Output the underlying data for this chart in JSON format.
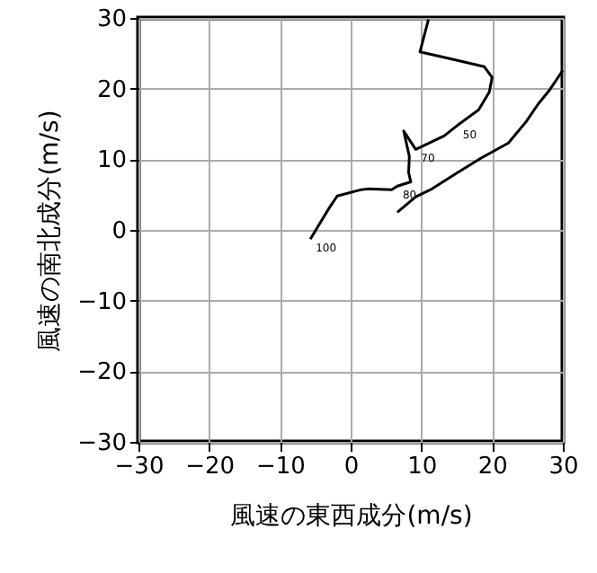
{
  "chart_data": {
    "type": "line",
    "xlabel": "風速の東西成分(m/s)",
    "ylabel": "風速の南北成分(m/s)",
    "xlim": [
      -30,
      30
    ],
    "ylim": [
      -30,
      30
    ],
    "xticks": [
      -30,
      -20,
      -10,
      0,
      10,
      20,
      30
    ],
    "yticks": [
      -30,
      -20,
      -10,
      0,
      10,
      20,
      30
    ],
    "grid": true,
    "marker": "none",
    "line_style": "solid",
    "series": [
      {
        "color": "#000000",
        "x": [
          6.6,
          9.2,
          11.3,
          15.1,
          18.5,
          22.3,
          24.8,
          26.5,
          28.2,
          30
        ],
        "values": [
          2.5,
          4.7,
          5.7,
          8.1,
          10.2,
          12.3,
          15.3,
          17.8,
          19.9,
          22.6
        ]
      },
      {
        "color": "#000000",
        "x": [
          11.0,
          9.8,
          15.1,
          18.9,
          20,
          19.6,
          18.1,
          15.1,
          13.2,
          9.2,
          7.5,
          8.3,
          8.2,
          8.5,
          6.6,
          5.8,
          2.4,
          1.5,
          -1.9,
          -3.1,
          -5.7
        ],
        "values": [
          29.8,
          25.2,
          24.0,
          23.1,
          21.6,
          19.5,
          17.0,
          14.8,
          13.3,
          11.4,
          14.0,
          10.4,
          8.1,
          6.8,
          6.2,
          5.7,
          5.8,
          5.7,
          4.8,
          3.0,
          -1.3
        ]
      }
    ],
    "annotations": [
      {
        "text": "50",
        "x": 15.1,
        "y": 14.8
      },
      {
        "text": "70",
        "x": 9.2,
        "y": 11.4
      },
      {
        "text": "80",
        "x": 6.6,
        "y": 6.2
      },
      {
        "text": "100",
        "x": -5.7,
        "y": -1.3
      }
    ]
  }
}
